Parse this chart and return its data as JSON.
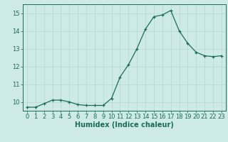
{
  "x": [
    0,
    1,
    2,
    3,
    4,
    5,
    6,
    7,
    8,
    9,
    10,
    11,
    12,
    13,
    14,
    15,
    16,
    17,
    18,
    19,
    20,
    21,
    22,
    23
  ],
  "y": [
    9.7,
    9.7,
    9.9,
    10.1,
    10.1,
    10.0,
    9.85,
    9.8,
    9.8,
    9.8,
    10.2,
    11.4,
    12.1,
    13.0,
    14.1,
    14.8,
    14.9,
    15.15,
    14.0,
    13.3,
    12.8,
    12.6,
    12.55,
    12.6
  ],
  "line_color": "#1a6b5a",
  "marker": "+",
  "marker_size": 3,
  "bg_color": "#ceeae6",
  "grid_color": "#b8d8d4",
  "xlabel": "Humidex (Indice chaleur)",
  "ylim": [
    9.5,
    15.5
  ],
  "xlim": [
    -0.5,
    23.5
  ],
  "yticks": [
    10,
    11,
    12,
    13,
    14,
    15
  ],
  "xticks": [
    0,
    1,
    2,
    3,
    4,
    5,
    6,
    7,
    8,
    9,
    10,
    11,
    12,
    13,
    14,
    15,
    16,
    17,
    18,
    19,
    20,
    21,
    22,
    23
  ],
  "tick_color": "#1a6b5a",
  "label_color": "#1a6b5a",
  "xlabel_fontsize": 7,
  "tick_fontsize": 6
}
